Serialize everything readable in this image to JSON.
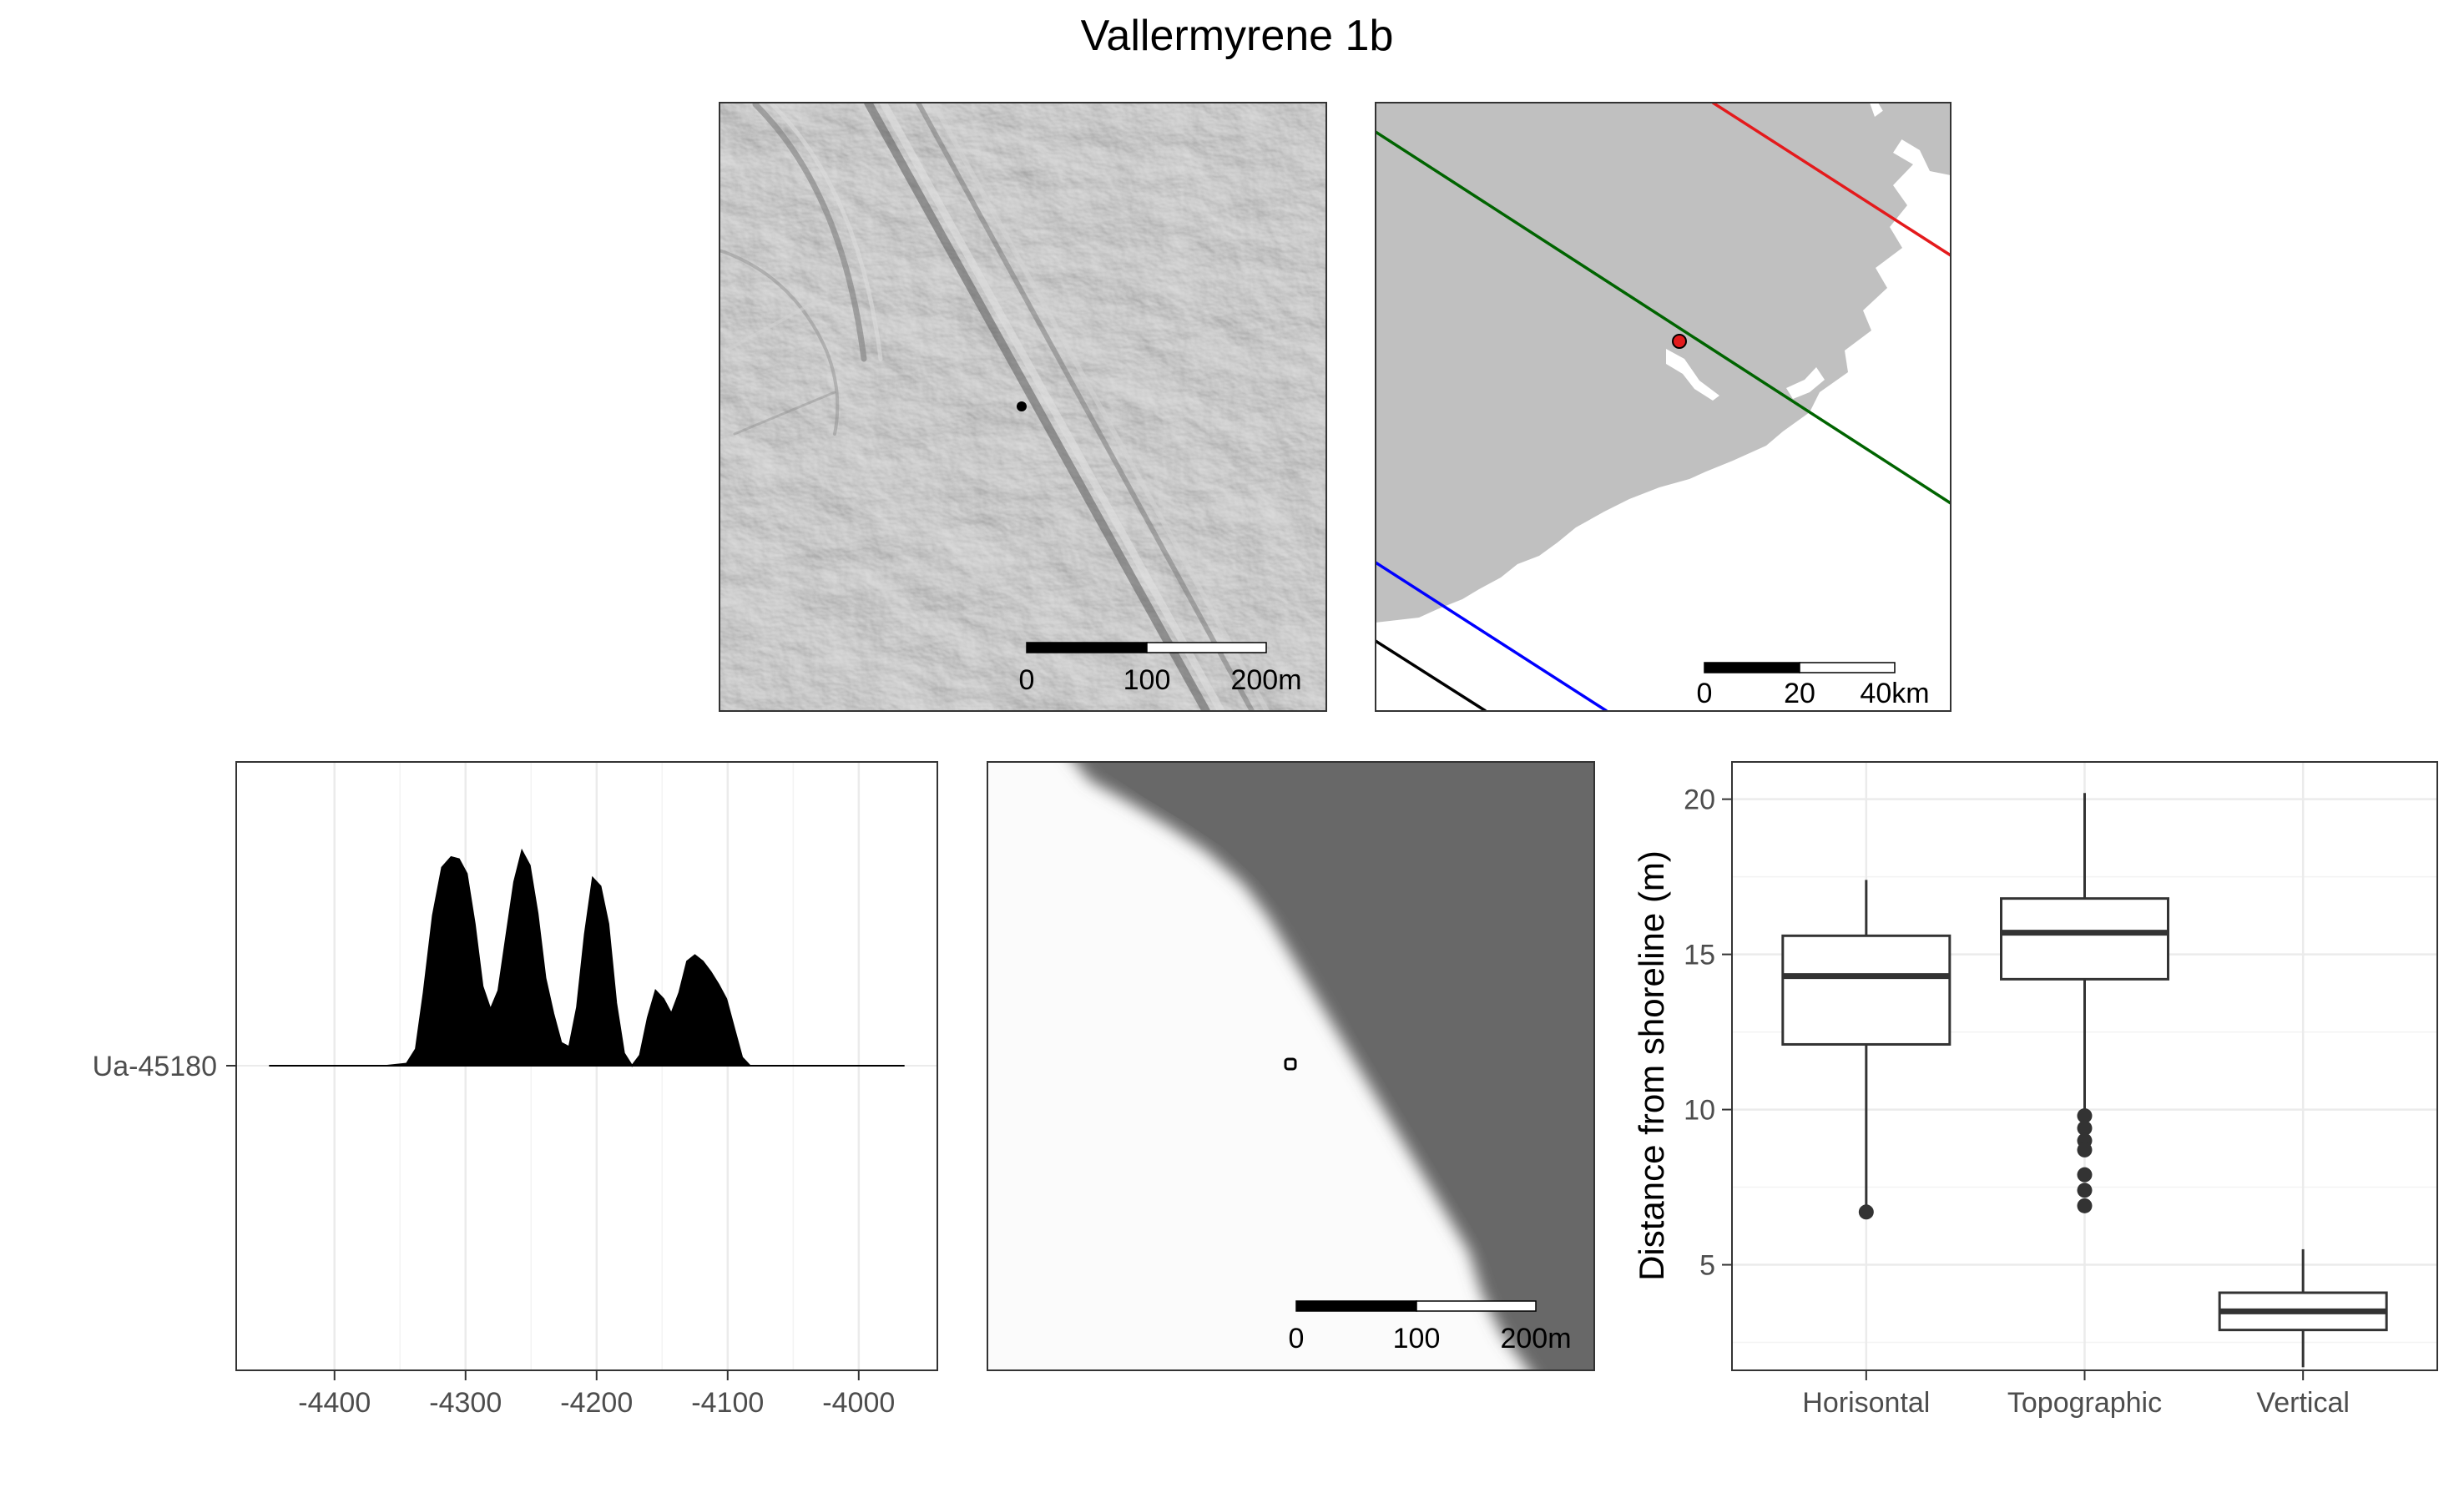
{
  "title": "Vallermyrene 1b",
  "colors": {
    "panel_border": "#333333",
    "sea": "#ffffff",
    "land": "#c0c0c0",
    "site_point": "#e31a1c",
    "isobase_red": "#e41a1c",
    "isobase_green": "#006400",
    "isobase_blue": "#0000ff",
    "isobase_black": "#000000",
    "density_fill": "#000000",
    "boxplot_stroke": "#333333",
    "grid": "#ebebeb",
    "hillshade_base": "#b3b3b3",
    "shoreline_dark": "#686868",
    "shoreline_light": "#fbfbfb"
  },
  "panels": {
    "local_dem": {
      "scalebar": {
        "labels": [
          "0",
          "100",
          "200m"
        ]
      }
    },
    "regional_map": {
      "scalebar": {
        "labels": [
          "0",
          "20",
          "40km"
        ]
      }
    },
    "shoreline_map": {
      "scalebar": {
        "labels": [
          "0",
          "100",
          "200m"
        ]
      }
    }
  },
  "chart_data": [
    {
      "type": "area",
      "name": "radiocarbon-density",
      "x_ticks": [
        -4400,
        -4300,
        -4200,
        -4100,
        -4000
      ],
      "xlim": [
        -4475,
        -3940
      ],
      "y_categories": [
        "Ua-45180"
      ],
      "ylim": [
        0,
        1
      ],
      "grid": true,
      "x": [
        -4450,
        -4360,
        -4345,
        -4338,
        -4332,
        -4325,
        -4318,
        -4311,
        -4305,
        -4299,
        -4293,
        -4287,
        -4281,
        -4275,
        -4269,
        -4263,
        -4257,
        -4251,
        -4245,
        -4239,
        -4233,
        -4227,
        -4221,
        -4215,
        -4209,
        -4203,
        -4197,
        -4191,
        -4185,
        -4179,
        -4173,
        -4167,
        -4161,
        -4155,
        -4149,
        -4143,
        -4137,
        -4131,
        -4125,
        -4119,
        -4113,
        -4107,
        -4101,
        -4095,
        -4089,
        -4083,
        -4077,
        -4071,
        -4065,
        -4059,
        -4053,
        -4047,
        -4041,
        -4035,
        -4000,
        -3965
      ],
      "y": [
        0,
        0,
        0.01,
        0.08,
        0.35,
        0.72,
        0.95,
        1.0,
        0.99,
        0.92,
        0.68,
        0.38,
        0.27,
        0.36,
        0.62,
        0.88,
        1.03,
        0.96,
        0.73,
        0.42,
        0.25,
        0.11,
        0.09,
        0.28,
        0.63,
        0.9,
        0.86,
        0.68,
        0.3,
        0.06,
        0.0,
        0.05,
        0.23,
        0.36,
        0.32,
        0.25,
        0.35,
        0.5,
        0.53,
        0.5,
        0.45,
        0.39,
        0.32,
        0.18,
        0.04,
        0.0,
        0.0,
        0.0,
        0.0,
        0.0,
        0.0,
        0.0,
        0.0,
        0.0,
        0.0,
        0.0
      ]
    },
    {
      "type": "box",
      "name": "distance-boxplot",
      "categories": [
        "Horisontal",
        "Topographic",
        "Vertical"
      ],
      "ylabel": "Distance from shoreline (m)",
      "y_ticks": [
        5,
        10,
        15,
        20
      ],
      "ylim": [
        1.6,
        21.2
      ],
      "grid": true,
      "series": [
        {
          "category": "Horisontal",
          "whisker_low": 6.9,
          "q1": 12.1,
          "median": 14.3,
          "q3": 15.6,
          "whisker_high": 17.4,
          "outliers": [
            6.7
          ]
        },
        {
          "category": "Topographic",
          "whisker_low": 10.0,
          "q1": 14.2,
          "median": 15.7,
          "q3": 16.8,
          "whisker_high": 20.2,
          "outliers": [
            9.8,
            9.4,
            9.0,
            8.7,
            7.9,
            7.4,
            6.9
          ]
        },
        {
          "category": "Vertical",
          "whisker_low": 1.7,
          "q1": 2.9,
          "median": 3.5,
          "q3": 4.1,
          "whisker_high": 5.5,
          "outliers": []
        }
      ]
    }
  ]
}
